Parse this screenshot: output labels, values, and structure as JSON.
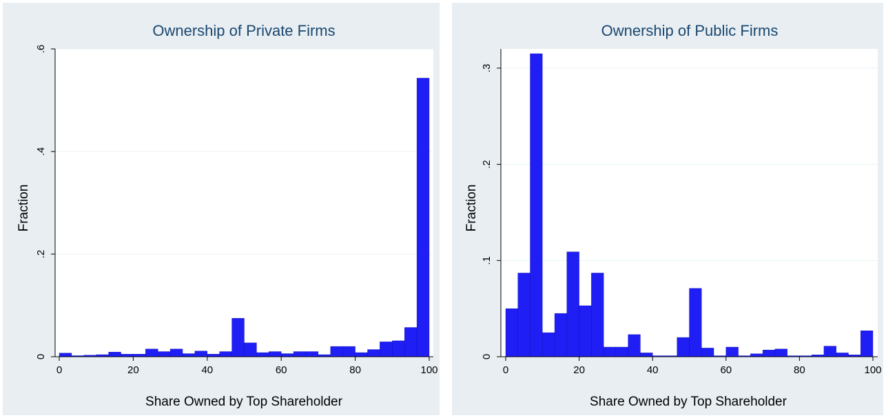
{
  "chart_data": [
    {
      "type": "bar",
      "title": "Ownership of Private Firms",
      "xlabel": "Share Owned by Top Shareholder",
      "ylabel": "Fraction",
      "xlim": [
        0,
        100
      ],
      "ylim": [
        0,
        0.6
      ],
      "xticks": [
        "0",
        "20",
        "40",
        "60",
        "80",
        "100"
      ],
      "yticks": [
        "0",
        ".2",
        ".4",
        ".6"
      ],
      "bin_width": 3.33,
      "bar_color": "#1f1ff5",
      "grid": true,
      "x": [
        1.67,
        5,
        8.33,
        11.67,
        15,
        18.33,
        21.67,
        25,
        28.33,
        31.67,
        35,
        38.33,
        41.67,
        45,
        48.33,
        51.67,
        55,
        58.33,
        61.67,
        65,
        68.33,
        71.67,
        75,
        78.33,
        81.67,
        85,
        88.33,
        91.67,
        95,
        98.33
      ],
      "values": [
        0.007,
        0.002,
        0.003,
        0.004,
        0.009,
        0.005,
        0.005,
        0.015,
        0.01,
        0.015,
        0.006,
        0.011,
        0.005,
        0.01,
        0.075,
        0.027,
        0.008,
        0.01,
        0.006,
        0.01,
        0.01,
        0.004,
        0.02,
        0.02,
        0.008,
        0.014,
        0.029,
        0.031,
        0.057,
        0.543
      ]
    },
    {
      "type": "bar",
      "title": "Ownership of Public Firms",
      "xlabel": "Share Owned by Top Shareholder",
      "ylabel": "Fraction",
      "xlim": [
        0,
        100
      ],
      "ylim": [
        0,
        0.32
      ],
      "xticks": [
        "0",
        "20",
        "40",
        "60",
        "80",
        "100"
      ],
      "yticks": [
        "0",
        ".1",
        ".2",
        ".3"
      ],
      "bin_width": 3.33,
      "bar_color": "#1f1ff5",
      "grid": true,
      "x": [
        1.67,
        5,
        8.33,
        11.67,
        15,
        18.33,
        21.67,
        25,
        28.33,
        31.67,
        35,
        38.33,
        41.67,
        45,
        48.33,
        51.67,
        55,
        58.33,
        61.67,
        65,
        68.33,
        71.67,
        75,
        78.33,
        81.67,
        85,
        88.33,
        91.67,
        95,
        98.33
      ],
      "values": [
        0.05,
        0.087,
        0.315,
        0.025,
        0.045,
        0.109,
        0.053,
        0.087,
        0.01,
        0.01,
        0.023,
        0.004,
        0.001,
        0.001,
        0.02,
        0.071,
        0.009,
        0.001,
        0.01,
        0.001,
        0.003,
        0.007,
        0.008,
        0.001,
        0.001,
        0.002,
        0.011,
        0.004,
        0.002,
        0.027
      ]
    }
  ]
}
